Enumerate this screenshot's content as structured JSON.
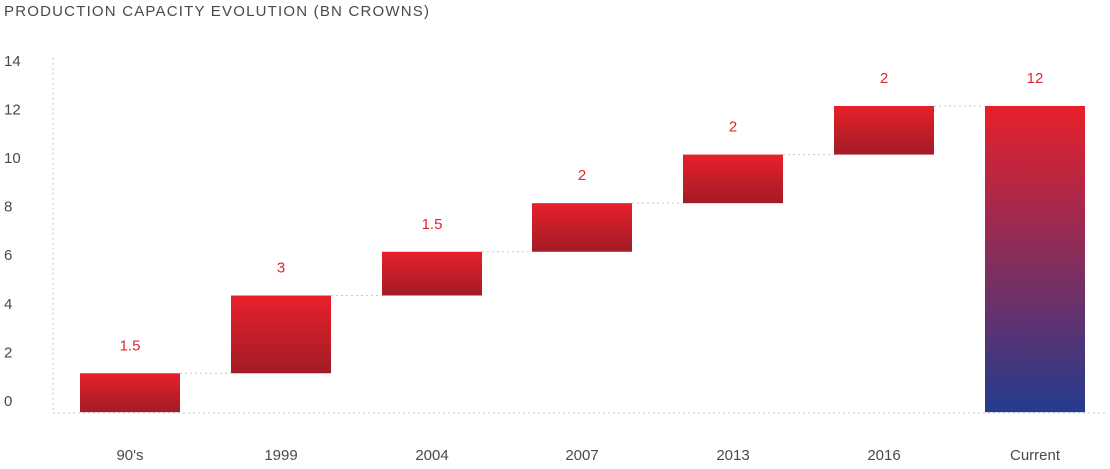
{
  "chart_data": {
    "type": "bar",
    "subtype": "waterfall",
    "title": "PRODUCTION CAPACITY EVOLUTION (BN CROWNS)",
    "categories": [
      "90's",
      "1999",
      "2004",
      "2007",
      "2013",
      "2016",
      "Current"
    ],
    "values": [
      1.5,
      3,
      1.5,
      2,
      2,
      2,
      12
    ],
    "data_labels": [
      "1.5",
      "3",
      "1.5",
      "2",
      "2",
      "2",
      "12"
    ],
    "bar_ranges": [
      [
        -0.5,
        1.1
      ],
      [
        1.1,
        4.3
      ],
      [
        4.3,
        6.1
      ],
      [
        6.1,
        8.1
      ],
      [
        8.1,
        10.1
      ],
      [
        10.1,
        12.1
      ],
      [
        -0.5,
        12.1
      ]
    ],
    "ylim": [
      0,
      14
    ],
    "yticks": [
      "0",
      "2",
      "4",
      "6",
      "8",
      "10",
      "12",
      "14"
    ],
    "xlabel": "",
    "ylabel": "",
    "grid": false,
    "connectors": true,
    "colors": {
      "increment_top": "#e8202a",
      "increment_bottom": "#a11c26",
      "total_top": "#e8202a",
      "total_bottom": "#253b8e",
      "label": "#e0262e",
      "axis_text": "#4a4a4a",
      "dotted": "#c8c8c8"
    }
  }
}
